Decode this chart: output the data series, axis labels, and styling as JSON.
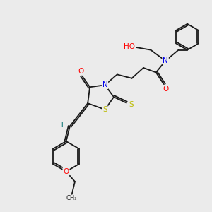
{
  "background_color": "#ebebeb",
  "bond_color": "#1a1a1a",
  "atom_colors": {
    "O": "#ff0000",
    "N": "#0000ee",
    "S": "#bbbb00",
    "H": "#007070",
    "C": "#1a1a1a"
  },
  "font_size": 7.5,
  "lw": 1.3
}
